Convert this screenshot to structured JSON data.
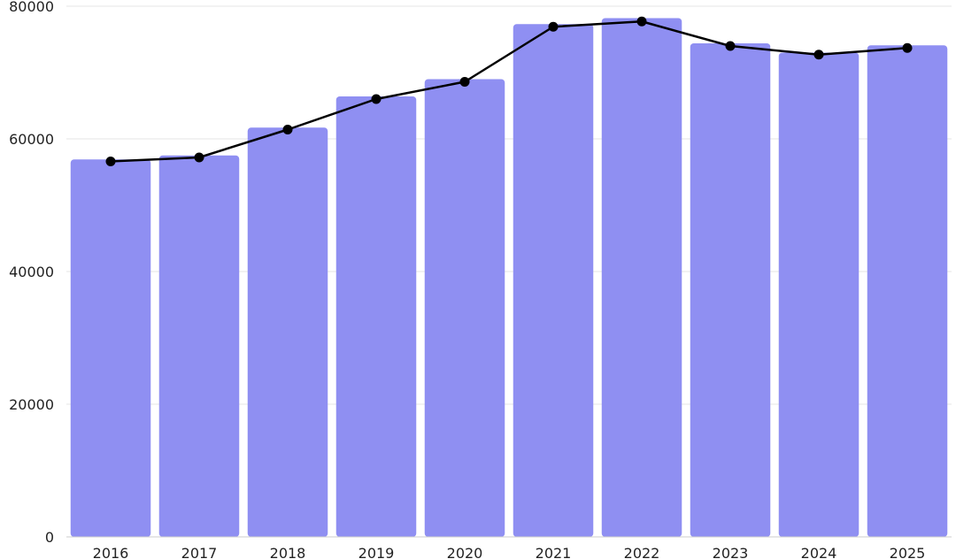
{
  "chart_data": {
    "type": "bar+line",
    "title": "",
    "xlabel": "",
    "ylabel": "",
    "categories": [
      "2016",
      "2017",
      "2018",
      "2019",
      "2020",
      "2021",
      "2022",
      "2023",
      "2024",
      "2025"
    ],
    "series": [
      {
        "name": "bars",
        "type": "bar",
        "color": "#8f8ff2",
        "values": [
          56900,
          57500,
          61700,
          66400,
          69000,
          77300,
          78200,
          74400,
          73000,
          74100
        ]
      },
      {
        "name": "line",
        "type": "line",
        "color": "#000000",
        "values": [
          56600,
          57200,
          61400,
          66000,
          68600,
          76900,
          77700,
          74000,
          72700,
          73700
        ]
      }
    ],
    "ylim": [
      0,
      80000
    ],
    "yticks": [
      0,
      20000,
      40000,
      60000,
      80000
    ],
    "ytick_labels": [
      "0",
      "20000",
      "40000",
      "60000",
      "80000"
    ],
    "grid": true,
    "legend": "none"
  }
}
